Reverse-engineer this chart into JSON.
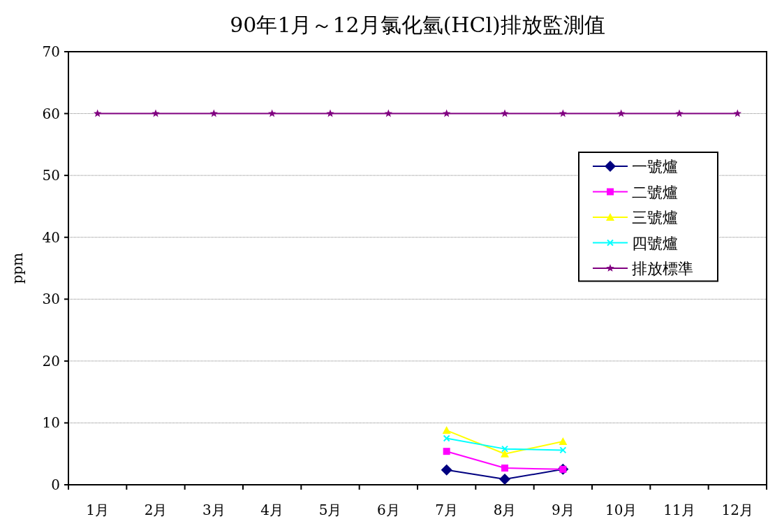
{
  "chart_data": {
    "type": "line",
    "title": "90年1月～12月氯化氫(HCl)排放監測值",
    "ylabel": "ppm",
    "categories": [
      "1月",
      "2月",
      "3月",
      "4月",
      "5月",
      "6月",
      "7月",
      "8月",
      "9月",
      "10月",
      "11月",
      "12月"
    ],
    "ylim": [
      0,
      70
    ],
    "yticks": [
      0,
      10,
      20,
      30,
      40,
      50,
      60,
      70
    ],
    "grid": "y",
    "legend": "right",
    "series": [
      {
        "name": "一號爐",
        "color": "#000080",
        "marker": "diamond",
        "values": [
          null,
          null,
          null,
          null,
          null,
          null,
          2.4,
          0.9,
          2.5,
          null,
          null,
          null
        ]
      },
      {
        "name": "二號爐",
        "color": "#ff00ff",
        "marker": "square",
        "values": [
          null,
          null,
          null,
          null,
          null,
          null,
          5.4,
          2.7,
          2.5,
          null,
          null,
          null
        ]
      },
      {
        "name": "三號爐",
        "color": "#ffff00",
        "marker": "triangle",
        "values": [
          null,
          null,
          null,
          null,
          null,
          null,
          8.8,
          5.0,
          7.0,
          null,
          null,
          null
        ]
      },
      {
        "name": "四號爐",
        "color": "#00ffff",
        "marker": "cross",
        "values": [
          null,
          null,
          null,
          null,
          null,
          null,
          7.5,
          5.8,
          5.6,
          null,
          null,
          null
        ]
      },
      {
        "name": "排放標準",
        "color": "#800080",
        "marker": "star",
        "values": [
          60,
          60,
          60,
          60,
          60,
          60,
          60,
          60,
          60,
          60,
          60,
          60
        ]
      }
    ]
  }
}
